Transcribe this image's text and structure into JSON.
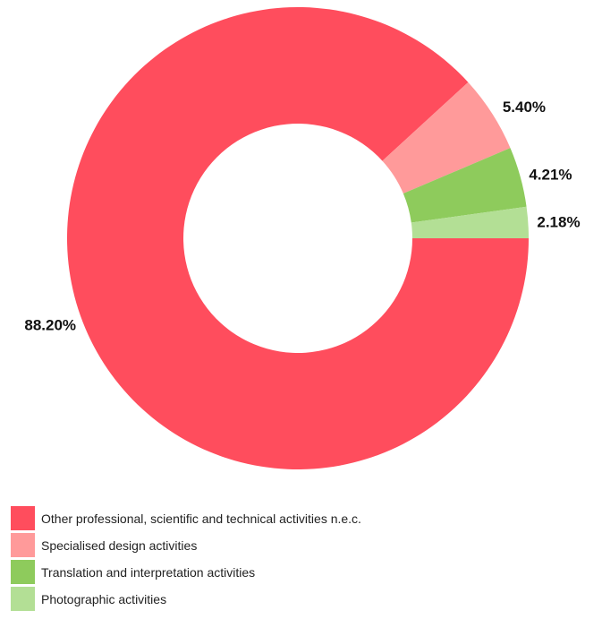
{
  "chart_data": {
    "type": "pie",
    "donut": true,
    "title": "",
    "legend_position": "bottom-left",
    "slices": [
      {
        "label": "Other professional, scientific and technical activities n.e.c.",
        "value": 88.2,
        "value_label": "88.20%",
        "color": "#ff4d5d"
      },
      {
        "label": "Specialised design activities",
        "value": 5.4,
        "value_label": "5.40%",
        "color": "#ff9a9a"
      },
      {
        "label": "Translation and interpretation activities",
        "value": 4.21,
        "value_label": "4.21%",
        "color": "#8ecb5c"
      },
      {
        "label": "Photographic activities",
        "value": 2.18,
        "value_label": "2.18%",
        "color": "#b3df95"
      }
    ]
  }
}
